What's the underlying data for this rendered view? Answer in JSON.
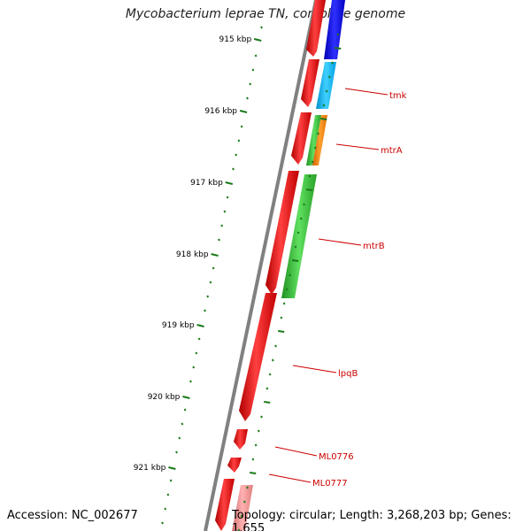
{
  "title": "Mycobacterium leprae TN, complete genome",
  "footer": {
    "accession": "Accession: NC_002677",
    "topology": "Topology: circular; Length: 3,268,203 bp; Genes: 1,655"
  },
  "colors": {
    "backbone": "#808080",
    "cds": "#ff0000",
    "gene_labels": "#cc0000",
    "ticks": "#1a7a1a"
  },
  "ruler": {
    "unit": "kbp",
    "major_labels": [
      "915 kbp",
      "916 kbp",
      "917 kbp",
      "918 kbp",
      "919 kbp",
      "920 kbp",
      "921 kbp"
    ]
  },
  "gene_labels": [
    "tmk",
    "mtrA",
    "mtrB",
    "lpqB",
    "ML0776",
    "ML0777"
  ]
}
